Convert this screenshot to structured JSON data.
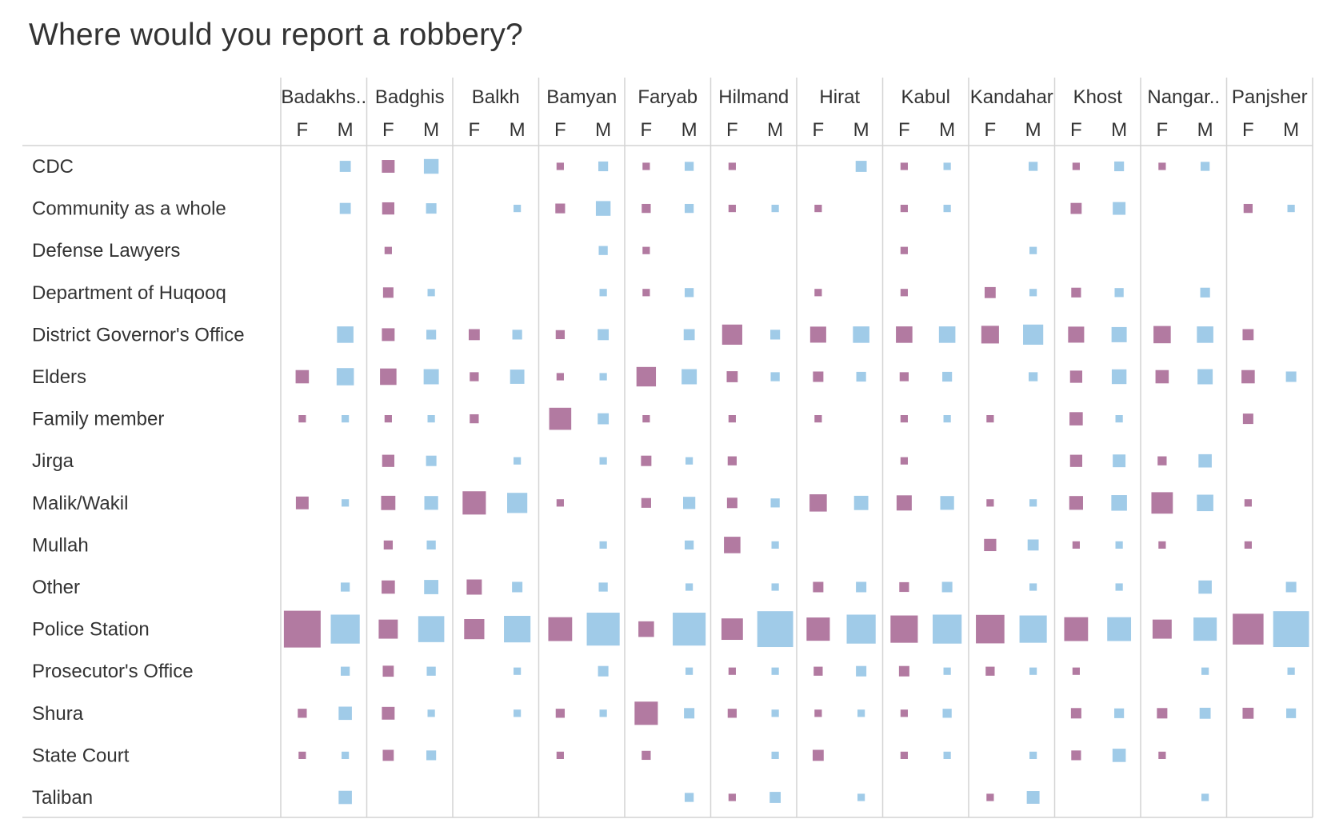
{
  "chart_data": {
    "type": "matrix-square",
    "title": "Where would you report a robbery?",
    "provinces": [
      "Badakhs..",
      "Badghis",
      "Balkh",
      "Bamyan",
      "Faryab",
      "Hilmand",
      "Hirat",
      "Kabul",
      "Kandahar",
      "Khost",
      "Nangar..",
      "Panjsher"
    ],
    "genders": [
      "F",
      "M"
    ],
    "categories": [
      "CDC",
      "Community as a whole",
      "Defense Lawyers",
      "Department of Huqooq",
      "District Governor's Office",
      "Elders",
      "Family member",
      "Jirga",
      "Malik/Wakil",
      "Mullah",
      "Other",
      "Police Station",
      "Prosecutor's Office",
      "Shura",
      "State Court",
      "Taliban"
    ],
    "colors": {
      "F": "#b27aa1",
      "M": "#a0cbe8",
      "grid": "#d4d4d4"
    },
    "value_unit": "relative marker size (0-100, Police Station F Badakhs.. = 100)",
    "values": {
      "CDC": [
        [
          0,
          9
        ],
        [
          12,
          16
        ],
        [
          0,
          0
        ],
        [
          4,
          7
        ],
        [
          4,
          6
        ],
        [
          4,
          0
        ],
        [
          0,
          9
        ],
        [
          4,
          4
        ],
        [
          0,
          6
        ],
        [
          4,
          7
        ],
        [
          4,
          6
        ],
        [
          0,
          0
        ]
      ],
      "Community as a whole": [
        [
          0,
          9
        ],
        [
          11,
          8
        ],
        [
          0,
          4
        ],
        [
          7,
          16
        ],
        [
          6,
          6
        ],
        [
          4,
          4
        ],
        [
          4,
          0
        ],
        [
          4,
          4
        ],
        [
          0,
          0
        ],
        [
          9,
          12
        ],
        [
          0,
          0
        ],
        [
          6,
          4
        ]
      ],
      "Defense Lawyers": [
        [
          0,
          0
        ],
        [
          4,
          0
        ],
        [
          0,
          0
        ],
        [
          0,
          6
        ],
        [
          4,
          0
        ],
        [
          0,
          0
        ],
        [
          0,
          0
        ],
        [
          4,
          0
        ],
        [
          0,
          4
        ],
        [
          0,
          0
        ],
        [
          0,
          0
        ],
        [
          0,
          0
        ]
      ],
      "Department of Huqooq": [
        [
          0,
          0
        ],
        [
          8,
          4
        ],
        [
          0,
          0
        ],
        [
          0,
          4
        ],
        [
          4,
          6
        ],
        [
          0,
          0
        ],
        [
          4,
          0
        ],
        [
          4,
          0
        ],
        [
          9,
          4
        ],
        [
          7,
          6
        ],
        [
          0,
          7
        ],
        [
          0,
          0
        ]
      ],
      "District Governor's Office": [
        [
          0,
          20
        ],
        [
          12,
          7
        ],
        [
          9,
          7
        ],
        [
          6,
          9
        ],
        [
          0,
          9
        ],
        [
          30,
          7
        ],
        [
          19,
          20
        ],
        [
          20,
          20
        ],
        [
          23,
          30
        ],
        [
          19,
          17
        ],
        [
          22,
          20
        ],
        [
          9,
          0
        ]
      ],
      "Elders": [
        [
          13,
          22
        ],
        [
          20,
          17
        ],
        [
          6,
          15
        ],
        [
          4,
          4
        ],
        [
          28,
          17
        ],
        [
          9,
          6
        ],
        [
          8,
          7
        ],
        [
          6,
          7
        ],
        [
          0,
          6
        ],
        [
          11,
          16
        ],
        [
          13,
          17
        ],
        [
          13,
          8
        ]
      ],
      "Family member": [
        [
          4,
          4
        ],
        [
          4,
          4
        ],
        [
          6,
          0
        ],
        [
          36,
          9
        ],
        [
          4,
          0
        ],
        [
          4,
          0
        ],
        [
          4,
          0
        ],
        [
          4,
          4
        ],
        [
          4,
          0
        ],
        [
          13,
          4
        ],
        [
          0,
          0
        ],
        [
          8,
          0
        ]
      ],
      "Jirga": [
        [
          0,
          0
        ],
        [
          11,
          8
        ],
        [
          0,
          4
        ],
        [
          0,
          4
        ],
        [
          8,
          4
        ],
        [
          6,
          0
        ],
        [
          0,
          0
        ],
        [
          4,
          0
        ],
        [
          0,
          0
        ],
        [
          11,
          12
        ],
        [
          6,
          13
        ],
        [
          0,
          0
        ]
      ],
      "Malik/Wakil": [
        [
          12,
          4
        ],
        [
          15,
          14
        ],
        [
          40,
          30
        ],
        [
          4,
          0
        ],
        [
          7,
          11
        ],
        [
          8,
          6
        ],
        [
          22,
          15
        ],
        [
          17,
          14
        ],
        [
          4,
          4
        ],
        [
          14,
          18
        ],
        [
          34,
          20
        ],
        [
          4,
          0
        ]
      ],
      "Mullah": [
        [
          0,
          0
        ],
        [
          6,
          6
        ],
        [
          0,
          0
        ],
        [
          0,
          4
        ],
        [
          0,
          6
        ],
        [
          20,
          4
        ],
        [
          0,
          0
        ],
        [
          0,
          0
        ],
        [
          11,
          9
        ],
        [
          4,
          4
        ],
        [
          4,
          0
        ],
        [
          4,
          0
        ]
      ],
      "Other": [
        [
          0,
          6
        ],
        [
          13,
          15
        ],
        [
          17,
          8
        ],
        [
          0,
          6
        ],
        [
          0,
          4
        ],
        [
          0,
          4
        ],
        [
          8,
          8
        ],
        [
          7,
          8
        ],
        [
          0,
          4
        ],
        [
          0,
          4
        ],
        [
          0,
          13
        ],
        [
          0,
          8
        ]
      ],
      "Police Station": [
        [
          100,
          62
        ],
        [
          27,
          50
        ],
        [
          30,
          52
        ],
        [
          42,
          80
        ],
        [
          18,
          80
        ],
        [
          34,
          95
        ],
        [
          40,
          62
        ],
        [
          55,
          62
        ],
        [
          60,
          55
        ],
        [
          42,
          42
        ],
        [
          27,
          40
        ],
        [
          70,
          95
        ]
      ],
      "Prosecutor's Office": [
        [
          0,
          6
        ],
        [
          9,
          6
        ],
        [
          0,
          4
        ],
        [
          0,
          8
        ],
        [
          0,
          4
        ],
        [
          4,
          4
        ],
        [
          6,
          8
        ],
        [
          8,
          4
        ],
        [
          6,
          4
        ],
        [
          4,
          0
        ],
        [
          0,
          4
        ],
        [
          0,
          4
        ]
      ],
      "Shura": [
        [
          6,
          13
        ],
        [
          12,
          4
        ],
        [
          0,
          4
        ],
        [
          6,
          4
        ],
        [
          40,
          8
        ],
        [
          6,
          4
        ],
        [
          4,
          4
        ],
        [
          4,
          6
        ],
        [
          0,
          0
        ],
        [
          8,
          7
        ],
        [
          8,
          9
        ],
        [
          9,
          7
        ]
      ],
      "State Court": [
        [
          4,
          4
        ],
        [
          9,
          7
        ],
        [
          0,
          0
        ],
        [
          4,
          0
        ],
        [
          6,
          0
        ],
        [
          0,
          4
        ],
        [
          9,
          0
        ],
        [
          4,
          4
        ],
        [
          0,
          4
        ],
        [
          7,
          13
        ],
        [
          4,
          0
        ],
        [
          0,
          0
        ]
      ],
      "Taliban": [
        [
          0,
          13
        ],
        [
          0,
          0
        ],
        [
          0,
          0
        ],
        [
          0,
          0
        ],
        [
          0,
          6
        ],
        [
          4,
          9
        ],
        [
          0,
          4
        ],
        [
          0,
          0
        ],
        [
          4,
          12
        ],
        [
          0,
          0
        ],
        [
          0,
          4
        ],
        [
          0,
          0
        ]
      ]
    }
  }
}
